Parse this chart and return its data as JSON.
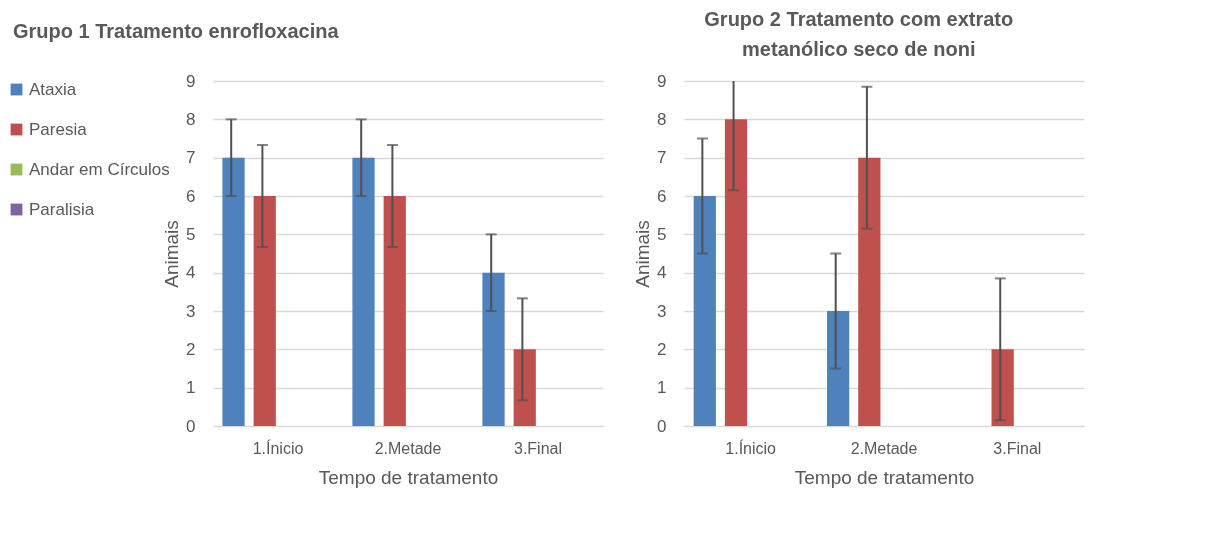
{
  "chart_data": [
    {
      "type": "bar",
      "title": "Grupo 1 Tratamento enrofloxacina",
      "xlabel": "Tempo de tratamento",
      "ylabel": "Animais",
      "categories": [
        "1.Ínicio",
        "2.Metade",
        "3.Final"
      ],
      "ylim": [
        0,
        9
      ],
      "yticks": [
        0,
        1,
        2,
        3,
        4,
        5,
        6,
        7,
        8,
        9
      ],
      "grid": "y",
      "legend": "left",
      "series": [
        {
          "name": "Ataxia",
          "color": "#4f81bd",
          "values": [
            7,
            7,
            4
          ],
          "errors": [
            1,
            1,
            1
          ]
        },
        {
          "name": "Paresia",
          "color": "#c0504d",
          "values": [
            6,
            6,
            2
          ],
          "errors": [
            1.33,
            1.33,
            1.33
          ]
        },
        {
          "name": "Andar em Círculos",
          "color": "#9bbb59",
          "values": [
            null,
            null,
            null
          ]
        },
        {
          "name": "Paralisia",
          "color": "#8064a2",
          "values": [
            null,
            null,
            null
          ]
        }
      ]
    },
    {
      "type": "bar",
      "title": "Grupo 2 Tratamento com extrato metanólico seco de noni",
      "xlabel": "Tempo de tratamento",
      "ylabel": "Animais",
      "categories": [
        "1.Ínicio",
        "2.Metade",
        "3.Final"
      ],
      "ylim": [
        0,
        9
      ],
      "yticks": [
        0,
        1,
        2,
        3,
        4,
        5,
        6,
        7,
        8,
        9
      ],
      "grid": "y",
      "series": [
        {
          "color": "#4f81bd",
          "values": [
            6,
            3,
            0
          ],
          "errors": [
            1.5,
            1.5,
            null
          ]
        },
        {
          "color": "#c0504d",
          "values": [
            8,
            7,
            2
          ],
          "errors": [
            [
              6.15,
              9
            ],
            1.85,
            1.85
          ]
        },
        {
          "color": "#9bbb59",
          "values": [
            null,
            null,
            null
          ]
        },
        {
          "color": "#8064a2",
          "values": [
            null,
            null,
            null
          ]
        }
      ]
    }
  ]
}
